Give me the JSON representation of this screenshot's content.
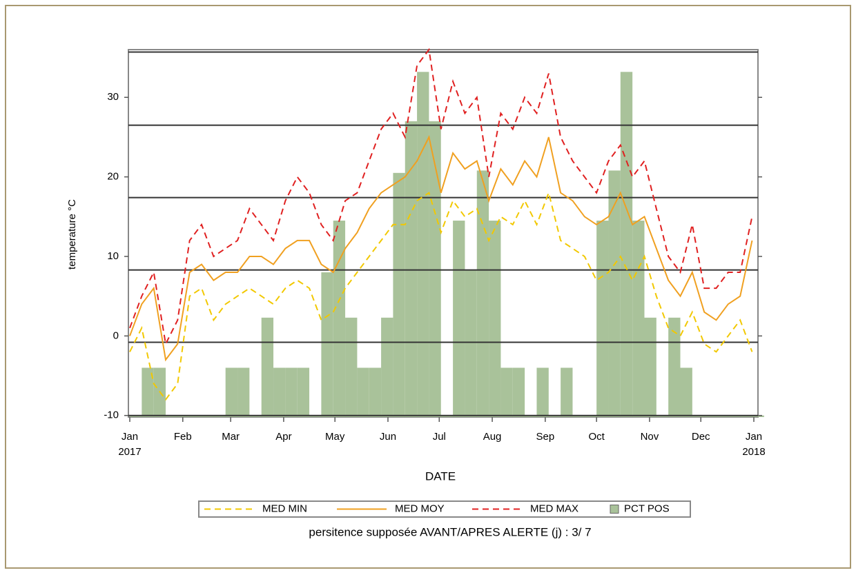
{
  "chart_data": {
    "type": "line",
    "y_label": "temperature °C",
    "x_label": "DATE",
    "footnote": "persitence supposée AVANT/APRES ALERTE (j) : 3/ 7",
    "xlim": [
      0,
      365
    ],
    "xticks": [
      {
        "value": 0,
        "label": "Jan"
      },
      {
        "value": 31,
        "label": "Feb"
      },
      {
        "value": 59,
        "label": "Mar"
      },
      {
        "value": 90,
        "label": "Apr"
      },
      {
        "value": 120,
        "label": "May"
      },
      {
        "value": 151,
        "label": "Jun"
      },
      {
        "value": 181,
        "label": "Jul"
      },
      {
        "value": 212,
        "label": "Aug"
      },
      {
        "value": 243,
        "label": "Sep"
      },
      {
        "value": 273,
        "label": "Oct"
      },
      {
        "value": 304,
        "label": "Nov"
      },
      {
        "value": 334,
        "label": "Dec"
      },
      {
        "value": 365,
        "label": "Jan"
      }
    ],
    "xtick_years": [
      {
        "value": 0,
        "label": "2017"
      },
      {
        "value": 365,
        "label": "2018"
      }
    ],
    "ylim": [
      -10.2,
      36
    ],
    "yticks": [
      -10,
      0,
      10,
      20,
      30
    ],
    "reference_lines": [
      35.7,
      26.5,
      17.4,
      8.3,
      -0.8,
      -10
    ],
    "x": [
      0,
      7,
      14,
      21,
      28,
      35,
      42,
      49,
      56,
      63,
      70,
      77,
      84,
      91,
      98,
      105,
      112,
      119,
      126,
      133,
      140,
      147,
      154,
      161,
      168,
      175,
      182,
      189,
      196,
      203,
      210,
      217,
      224,
      231,
      238,
      245,
      252,
      259,
      266,
      273,
      280,
      287,
      294,
      301,
      308,
      315,
      322,
      329,
      336,
      343,
      350,
      357,
      364
    ],
    "series": [
      {
        "name": "MED MIN",
        "type": "line",
        "dashed": true,
        "color": "#f2c800",
        "values": [
          -2,
          1,
          -6,
          -8,
          -6,
          5,
          6,
          2,
          4,
          5,
          6,
          5,
          4,
          6,
          7,
          6,
          2,
          3,
          6,
          8,
          10,
          12,
          14,
          14,
          17,
          18,
          13,
          17,
          15,
          16,
          12,
          15,
          14,
          17,
          14,
          18,
          12,
          11,
          10,
          7,
          8,
          10,
          7,
          10,
          5,
          1,
          0,
          3,
          -1,
          -2,
          0,
          2,
          -2
        ]
      },
      {
        "name": "MED MOY",
        "type": "line",
        "dashed": false,
        "color": "#f0a020",
        "values": [
          0,
          4,
          6,
          -3,
          -1,
          8,
          9,
          7,
          8,
          8,
          10,
          10,
          9,
          11,
          12,
          12,
          9,
          8,
          11,
          13,
          16,
          18,
          19,
          20,
          22,
          25,
          18,
          23,
          21,
          22,
          17,
          21,
          19,
          22,
          20,
          25,
          18,
          17,
          15,
          14,
          15,
          18,
          14,
          15,
          11,
          7,
          5,
          8,
          3,
          2,
          4,
          5,
          12
        ]
      },
      {
        "name": "MED MAX",
        "type": "line",
        "dashed": true,
        "color": "#e02020",
        "values": [
          1,
          5,
          8,
          -1,
          2,
          12,
          14,
          10,
          11,
          12,
          16,
          14,
          12,
          17,
          20,
          18,
          14,
          12,
          17,
          18,
          22,
          26,
          28,
          25,
          34,
          36,
          26,
          32,
          28,
          30,
          20,
          28,
          26,
          30,
          28,
          33,
          25,
          22,
          20,
          18,
          22,
          24,
          20,
          22,
          16,
          10,
          8,
          14,
          6,
          6,
          8,
          8,
          15
        ]
      },
      {
        "name": "PCT POS",
        "type": "bar",
        "color": "#a9c29a",
        "values": [
          -10,
          -4,
          -4,
          -10,
          -10,
          -10,
          -10,
          -10,
          -4,
          -4,
          -10,
          2.3,
          -4,
          -4,
          -4,
          -10,
          8,
          14.5,
          2.3,
          -4,
          -4,
          2.3,
          20.5,
          27,
          33.2,
          27,
          -10,
          14.5,
          8.3,
          20.8,
          14.5,
          -4,
          -4,
          -10,
          -4,
          -10,
          -4,
          -10,
          -10,
          14.5,
          20.8,
          33.2,
          14.5,
          2.3,
          -10,
          2.3,
          -4,
          -10,
          -10,
          -10,
          -10,
          -10,
          -10
        ]
      }
    ]
  }
}
